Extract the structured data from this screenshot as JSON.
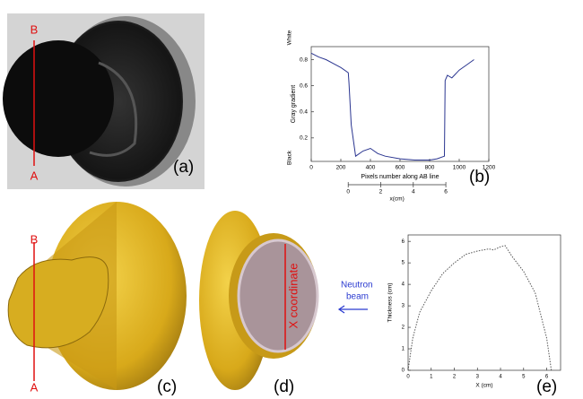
{
  "chart_data": [
    {
      "type": "line",
      "xlabel": "Pixels number along AB line",
      "ylabel": "Gray gradient",
      "annotations": [
        "White",
        "Black"
      ],
      "x": [
        0,
        50,
        100,
        150,
        200,
        250,
        255,
        270,
        300,
        350,
        400,
        450,
        500,
        600,
        700,
        800,
        850,
        900,
        905,
        920,
        950,
        1000,
        1050,
        1100
      ],
      "series": [
        {
          "color": "#2a3590",
          "values": [
            0.85,
            0.82,
            0.8,
            0.77,
            0.74,
            0.7,
            0.62,
            0.3,
            0.06,
            0.1,
            0.12,
            0.08,
            0.06,
            0.04,
            0.03,
            0.03,
            0.04,
            0.06,
            0.64,
            0.68,
            0.66,
            0.72,
            0.76,
            0.8
          ]
        }
      ],
      "line_style": "solid",
      "xlim": [
        0,
        1200
      ],
      "xticks": [
        0,
        200,
        400,
        600,
        800,
        1000,
        1200
      ],
      "ylim": [
        0.02,
        0.9
      ],
      "yticks": [
        0.2,
        0.4,
        0.6,
        0.8
      ],
      "x2label": "x(cm)",
      "x2lim": [
        -2.27,
        8.64
      ],
      "x2ticks": [
        0,
        2,
        4,
        6
      ]
    },
    {
      "type": "line",
      "xlabel": "X (cm)",
      "ylabel": "Thickness (cm)",
      "x": [
        0,
        0.2,
        0.5,
        1,
        1.5,
        2,
        2.5,
        3,
        3.5,
        3.7,
        4,
        4.2,
        4.5,
        5,
        5.5,
        6,
        6.2
      ],
      "series": [
        {
          "color": "#555555",
          "values": [
            0,
            1.5,
            2.7,
            3.7,
            4.5,
            5.0,
            5.4,
            5.55,
            5.65,
            5.6,
            5.75,
            5.8,
            5.3,
            4.6,
            3.6,
            1.5,
            0
          ]
        }
      ],
      "line_style": "dotted",
      "xlim": [
        0,
        6.6
      ],
      "xticks": [
        0,
        1,
        2,
        3,
        4,
        5,
        6
      ],
      "ylim": [
        0,
        6.3
      ],
      "yticks": [
        0,
        1,
        2,
        3,
        4,
        5,
        6
      ]
    }
  ],
  "figure": {
    "panel_labels": [
      "(a)",
      "(b)",
      "(c)",
      "(d)",
      "(e)"
    ],
    "line_ends": [
      "B",
      "A"
    ],
    "coordinate_label": "X coordinate",
    "beam_label": [
      "Neutron",
      "beam"
    ]
  }
}
